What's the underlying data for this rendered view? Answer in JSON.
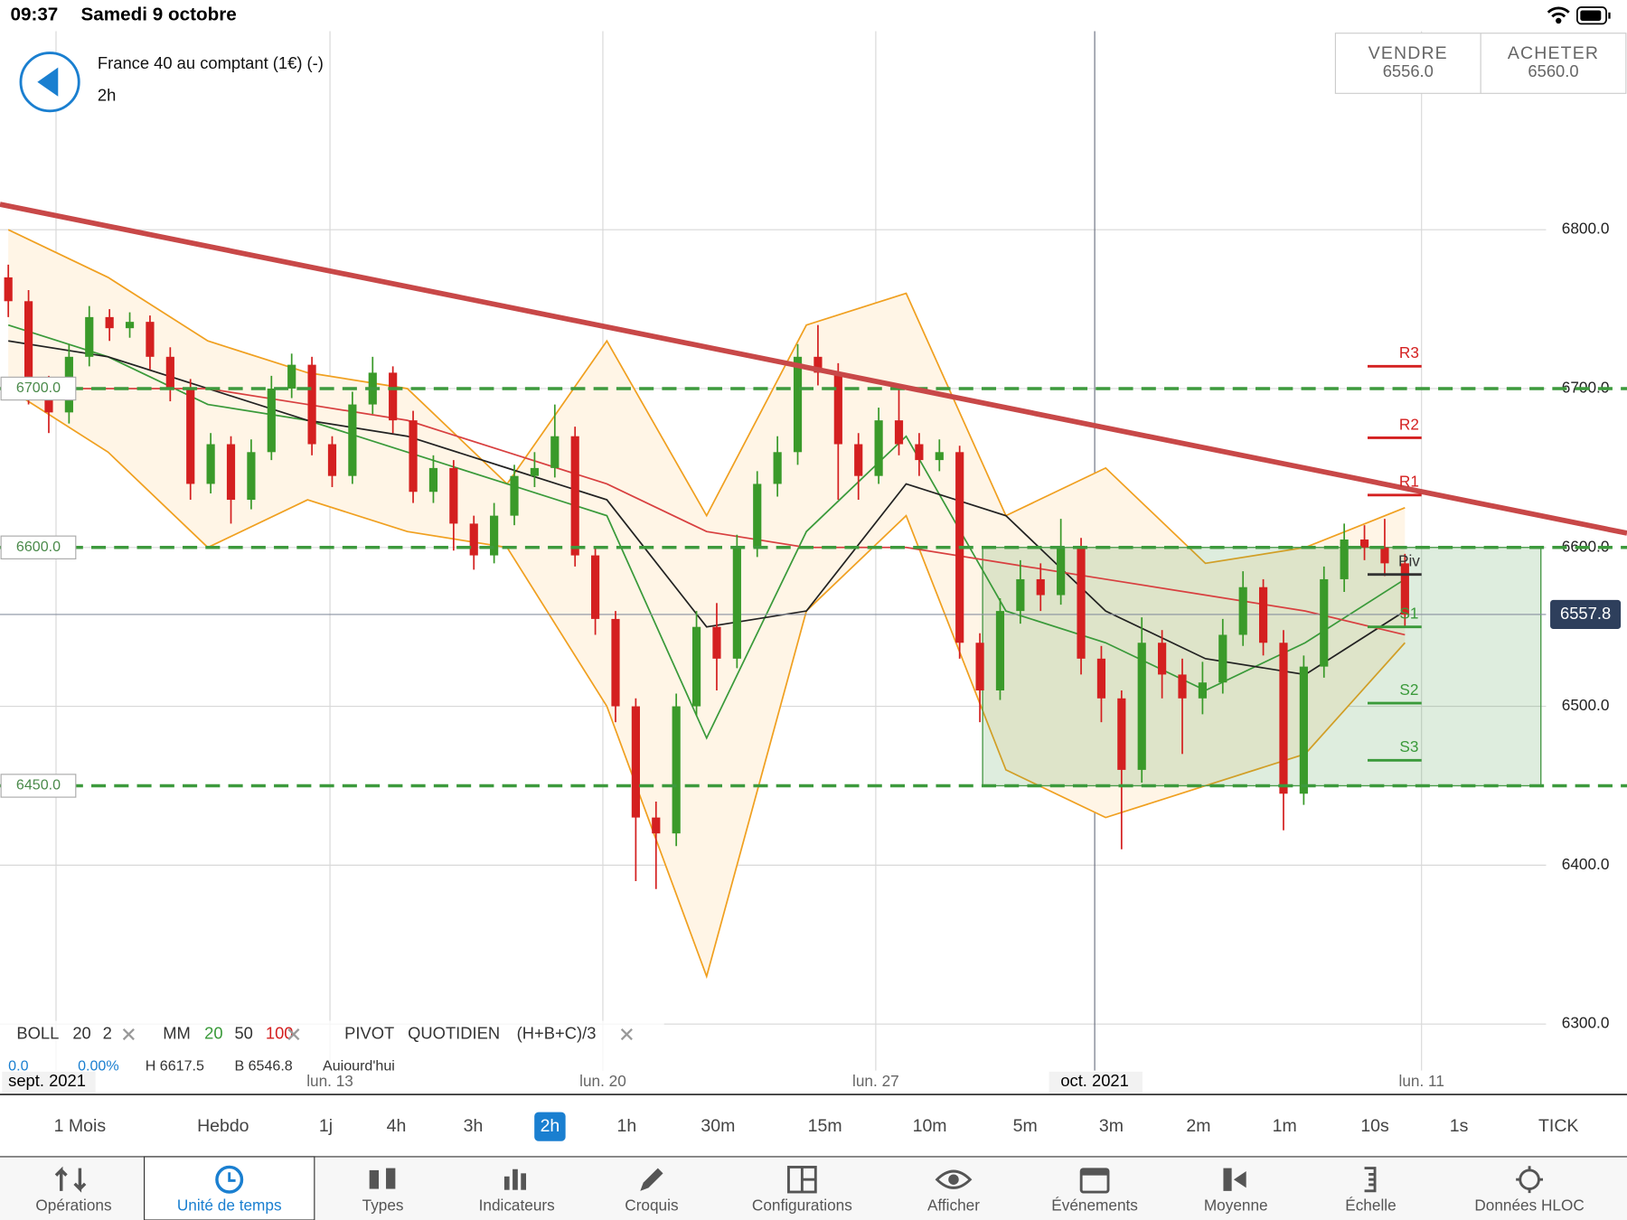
{
  "status_bar": {
    "time": "09:37",
    "date": "Samedi 9 octobre"
  },
  "header": {
    "instrument": "France 40 au comptant (1€) (-)",
    "interval": "2h"
  },
  "quote": {
    "sell": {
      "label": "VENDRE",
      "price": "6556.0"
    },
    "buy": {
      "label": "ACHETER",
      "price": "6560.0"
    }
  },
  "chart_data": {
    "type": "candlestick",
    "ylim": [
      6272,
      6925
    ],
    "yticks": [
      {
        "value": 6800,
        "label": "6800.0"
      },
      {
        "value": 6700,
        "label": "6700.0"
      },
      {
        "value": 6600,
        "label": "6600.0"
      },
      {
        "value": 6500,
        "label": "6500.0"
      },
      {
        "value": 6400,
        "label": "6400.0"
      },
      {
        "value": 6300,
        "label": "6300.0"
      }
    ],
    "x_labels": [
      "sept. 2021",
      "lun. 13",
      "lun. 20",
      "lun. 27",
      "oct. 2021",
      "lun. 11"
    ],
    "up_color": "#3a9a2a",
    "down_color": "#d42020",
    "candles": [
      [
        6770,
        6778,
        6745,
        6755
      ],
      [
        6755,
        6762,
        6690,
        6700
      ],
      [
        6700,
        6708,
        6672,
        6685
      ],
      [
        6685,
        6728,
        6678,
        6720
      ],
      [
        6720,
        6752,
        6714,
        6745
      ],
      [
        6745,
        6750,
        6730,
        6738
      ],
      [
        6738,
        6748,
        6732,
        6742
      ],
      [
        6742,
        6746,
        6712,
        6720
      ],
      [
        6720,
        6726,
        6692,
        6700
      ],
      [
        6700,
        6706,
        6630,
        6640
      ],
      [
        6640,
        6672,
        6634,
        6665
      ],
      [
        6665,
        6670,
        6615,
        6630
      ],
      [
        6630,
        6668,
        6624,
        6660
      ],
      [
        6660,
        6708,
        6655,
        6700
      ],
      [
        6700,
        6722,
        6694,
        6715
      ],
      [
        6715,
        6720,
        6658,
        6665
      ],
      [
        6665,
        6670,
        6638,
        6645
      ],
      [
        6645,
        6698,
        6640,
        6690
      ],
      [
        6690,
        6720,
        6684,
        6710
      ],
      [
        6710,
        6714,
        6672,
        6680
      ],
      [
        6680,
        6686,
        6628,
        6635
      ],
      [
        6635,
        6658,
        6628,
        6650
      ],
      [
        6650,
        6655,
        6598,
        6615
      ],
      [
        6615,
        6620,
        6586,
        6595
      ],
      [
        6595,
        6628,
        6590,
        6620
      ],
      [
        6620,
        6652,
        6614,
        6645
      ],
      [
        6645,
        6660,
        6638,
        6650
      ],
      [
        6650,
        6690,
        6644,
        6670
      ],
      [
        6670,
        6676,
        6588,
        6595
      ],
      [
        6595,
        6600,
        6545,
        6555
      ],
      [
        6555,
        6560,
        6490,
        6500
      ],
      [
        6500,
        6505,
        6390,
        6430
      ],
      [
        6430,
        6440,
        6385,
        6420
      ],
      [
        6420,
        6508,
        6412,
        6500
      ],
      [
        6500,
        6560,
        6494,
        6550
      ],
      [
        6550,
        6565,
        6510,
        6530
      ],
      [
        6530,
        6608,
        6524,
        6600
      ],
      [
        6600,
        6648,
        6594,
        6640
      ],
      [
        6640,
        6670,
        6632,
        6660
      ],
      [
        6660,
        6728,
        6652,
        6720
      ],
      [
        6720,
        6740,
        6702,
        6710
      ],
      [
        6710,
        6716,
        6630,
        6665
      ],
      [
        6665,
        6672,
        6630,
        6645
      ],
      [
        6645,
        6688,
        6640,
        6680
      ],
      [
        6680,
        6700,
        6658,
        6665
      ],
      [
        6665,
        6672,
        6645,
        6655
      ],
      [
        6655,
        6668,
        6648,
        6660
      ],
      [
        6660,
        6664,
        6530,
        6540
      ],
      [
        6540,
        6546,
        6490,
        6510
      ],
      [
        6510,
        6568,
        6504,
        6560
      ],
      [
        6560,
        6592,
        6552,
        6580
      ],
      [
        6580,
        6590,
        6560,
        6570
      ],
      [
        6570,
        6618,
        6564,
        6600
      ],
      [
        6600,
        6606,
        6520,
        6530
      ],
      [
        6530,
        6538,
        6490,
        6505
      ],
      [
        6505,
        6510,
        6410,
        6460
      ],
      [
        6460,
        6556,
        6452,
        6540
      ],
      [
        6540,
        6548,
        6505,
        6520
      ],
      [
        6520,
        6530,
        6470,
        6505
      ],
      [
        6505,
        6528,
        6495,
        6515
      ],
      [
        6515,
        6555,
        6508,
        6545
      ],
      [
        6545,
        6585,
        6538,
        6575
      ],
      [
        6575,
        6580,
        6532,
        6540
      ],
      [
        6540,
        6548,
        6422,
        6445
      ],
      [
        6445,
        6532,
        6438,
        6525
      ],
      [
        6525,
        6588,
        6518,
        6580
      ],
      [
        6580,
        6615,
        6572,
        6605
      ],
      [
        6605,
        6614,
        6592,
        6600
      ],
      [
        6600,
        6618,
        6582,
        6590
      ],
      [
        6590,
        6596,
        6550,
        6557.8
      ]
    ],
    "bollinger": {
      "color": "#f0a020",
      "fill": "#fff5e6",
      "upper": [
        6800,
        6770,
        6730,
        6710,
        6700,
        6640,
        6730,
        6620,
        6740,
        6760,
        6620,
        6650,
        6590,
        6600,
        6625
      ],
      "lower": [
        6700,
        6660,
        6600,
        6630,
        6610,
        6600,
        6500,
        6330,
        6560,
        6620,
        6460,
        6430,
        6450,
        6470,
        6540
      ]
    },
    "moving_averages": [
      {
        "color": "#3a9a3a",
        "values": [
          6740,
          6720,
          6690,
          6680,
          6660,
          6640,
          6620,
          6480,
          6610,
          6670,
          6560,
          6540,
          6510,
          6540,
          6580
        ]
      },
      {
        "color": "#222222",
        "values": [
          6730,
          6720,
          6700,
          6680,
          6670,
          6650,
          6630,
          6550,
          6560,
          6640,
          6620,
          6560,
          6530,
          6520,
          6560
        ]
      },
      {
        "color": "#d84040",
        "values": [
          6700,
          6700,
          6700,
          6690,
          6680,
          6660,
          6640,
          6610,
          6600,
          6600,
          6590,
          6580,
          6570,
          6560,
          6545
        ]
      }
    ],
    "last_price": {
      "value": 6557.8,
      "label": "6557.8"
    },
    "levels": [
      {
        "value": 6700,
        "label": "6700.0"
      },
      {
        "value": 6600,
        "label": "6600.0"
      },
      {
        "value": 6450,
        "label": "6450.0"
      }
    ],
    "level_color": "#3d9a3d",
    "trendline": {
      "start": 6816,
      "end": 6609,
      "color": "#c84848"
    },
    "range_box": {
      "top": 6600,
      "bottom": 6450
    },
    "pivots": [
      {
        "label": "R3",
        "value": 6714,
        "color": "#d42020"
      },
      {
        "label": "R2",
        "value": 6669,
        "color": "#d42020"
      },
      {
        "label": "R1",
        "value": 6633,
        "color": "#d42020"
      },
      {
        "label": "Piv",
        "value": 6583,
        "color": "#333333"
      },
      {
        "label": "S1",
        "value": 6550,
        "color": "#3a9a3a"
      },
      {
        "label": "S2",
        "value": 6502,
        "color": "#3a9a3a"
      },
      {
        "label": "S3",
        "value": 6466,
        "color": "#3a9a3a"
      }
    ],
    "indicator_legend": {
      "boll": [
        "BOLL",
        "20",
        "2"
      ],
      "mm": [
        "MM",
        "20",
        "50",
        "100"
      ],
      "pivot": [
        "PIVOT",
        "QUOTIDIEN",
        "(H+B+C)/3"
      ],
      "info": [
        "0.0",
        "0.00%",
        "H 6617.5",
        "B 6546.8",
        "Aujourd'hui"
      ]
    }
  },
  "timeframes": {
    "items": [
      "1 Mois",
      "Hebdo",
      "1j",
      "4h",
      "3h",
      "2h",
      "1h",
      "30m",
      "15m",
      "10m",
      "5m",
      "3m",
      "2m",
      "1m",
      "10s",
      "1s",
      "TICK"
    ],
    "selected": 5
  },
  "toolbar": {
    "items": [
      "Opérations",
      "Unité de temps",
      "Types",
      "Indicateurs",
      "Croquis",
      "Configurations",
      "Afficher",
      "Événements",
      "Moyenne",
      "Échelle",
      "Données HLOC"
    ],
    "selected": 1
  }
}
